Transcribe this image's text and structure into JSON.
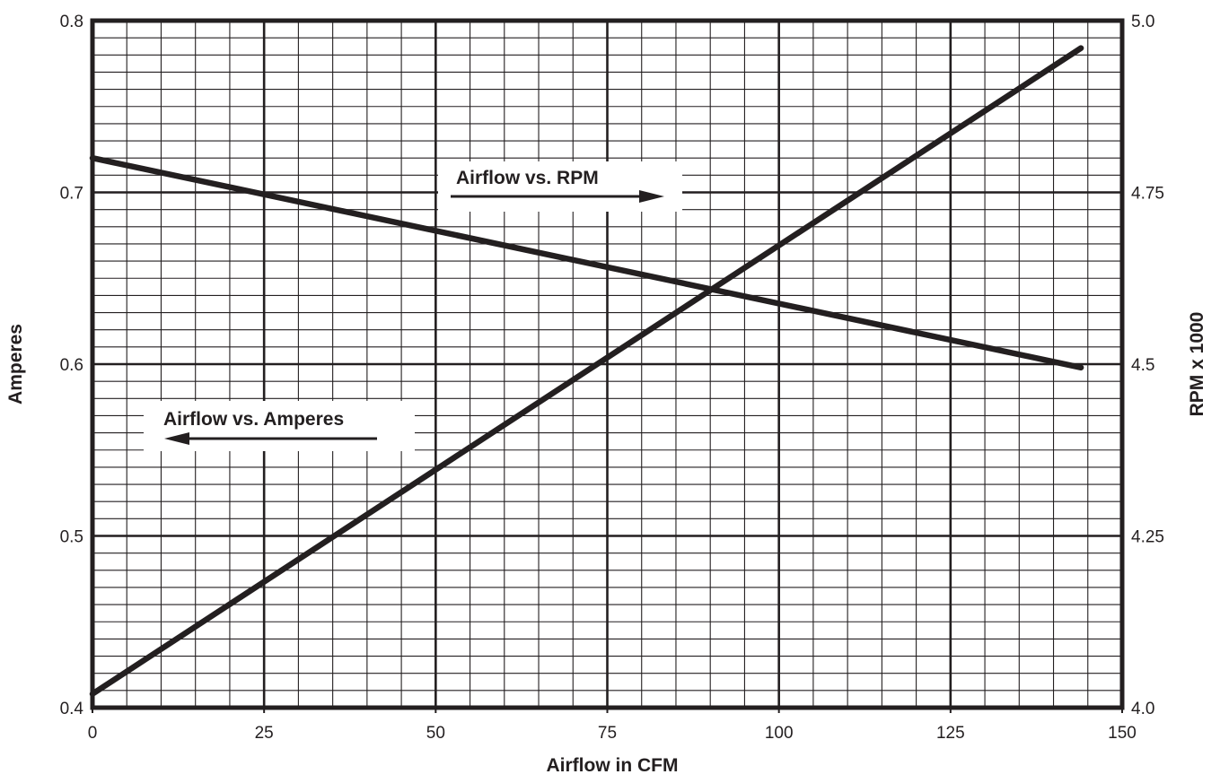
{
  "chart_data": {
    "type": "line",
    "xlabel": "Airflow in CFM",
    "ylabel": "Amperes",
    "y2label": "RPM x 1000",
    "xlim": [
      0,
      150
    ],
    "ylim": [
      0.4,
      0.8
    ],
    "y2lim": [
      4.0,
      5.0
    ],
    "x_ticks": [
      "0",
      "25",
      "50",
      "75",
      "100",
      "125",
      "150"
    ],
    "y_ticks": [
      "0.4",
      "0.5",
      "0.6",
      "0.7",
      "0.8"
    ],
    "y2_ticks": [
      "4.0",
      "4.25",
      "4.5",
      "4.75",
      "5.0"
    ],
    "grid": true,
    "series": [
      {
        "name": "Airflow vs. Amperes",
        "axis": "left",
        "x": [
          0,
          144
        ],
        "y": [
          0.72,
          0.598
        ]
      },
      {
        "name": "Airflow vs. RPM",
        "axis": "right",
        "x": [
          0,
          144
        ],
        "y": [
          4.02,
          4.96
        ]
      }
    ],
    "annotations": {
      "rpm_label": "Airflow vs. RPM",
      "amp_label": "Airflow vs. Amperes"
    }
  },
  "colors": {
    "ink": "#231f20",
    "background": "#ffffff"
  }
}
